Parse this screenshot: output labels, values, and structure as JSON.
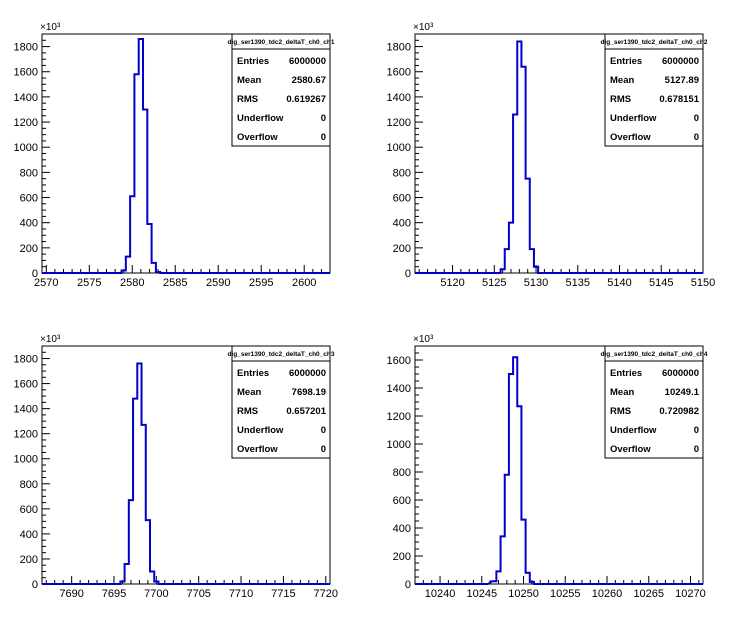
{
  "chart_data": [
    {
      "type": "bar",
      "style": "histogram",
      "title": "",
      "xlabel": "",
      "ylabel": "",
      "y_multiplier": "×10³",
      "xlim": [
        2569.5,
        2603.0
      ],
      "ylim": [
        0,
        1900
      ],
      "xticks": [
        2570,
        2575,
        2580,
        2585,
        2590,
        2595,
        2600
      ],
      "yticks": [
        0,
        200,
        400,
        600,
        800,
        1000,
        1200,
        1400,
        1600,
        1800
      ],
      "bins": [
        {
          "x": 2577.5,
          "y": 0
        },
        {
          "x": 2578.5,
          "y": 0
        },
        {
          "x": 2579.0,
          "y": 20
        },
        {
          "x": 2579.5,
          "y": 130
        },
        {
          "x": 2580.0,
          "y": 610
        },
        {
          "x": 2580.5,
          "y": 1580
        },
        {
          "x": 2581.0,
          "y": 1860
        },
        {
          "x": 2581.5,
          "y": 1300
        },
        {
          "x": 2582.0,
          "y": 390
        },
        {
          "x": 2582.5,
          "y": 80
        },
        {
          "x": 2583.0,
          "y": 8
        },
        {
          "x": 2583.5,
          "y": 0
        }
      ],
      "bin_width": 0.5,
      "stats": {
        "name": "dig_ser1390_tdc2_deltaT_ch0_ch1",
        "rows": [
          {
            "label": "Entries",
            "value": "6000000"
          },
          {
            "label": "Mean",
            "value": "2580.67"
          },
          {
            "label": "RMS",
            "value": "0.619267"
          },
          {
            "label": "Underflow",
            "value": "0"
          },
          {
            "label": "Overflow",
            "value": "0"
          }
        ]
      },
      "line_color": "#0000CC"
    },
    {
      "type": "bar",
      "style": "histogram",
      "title": "",
      "xlabel": "",
      "ylabel": "",
      "y_multiplier": "×10³",
      "xlim": [
        5115.5,
        5150.0
      ],
      "ylim": [
        0,
        1900
      ],
      "xticks": [
        5120,
        5125,
        5130,
        5135,
        5140,
        5145,
        5150
      ],
      "yticks": [
        0,
        200,
        400,
        600,
        800,
        1000,
        1200,
        1400,
        1600,
        1800
      ],
      "bins": [
        {
          "x": 5124.5,
          "y": 0
        },
        {
          "x": 5125.5,
          "y": 0
        },
        {
          "x": 5126.0,
          "y": 30
        },
        {
          "x": 5126.5,
          "y": 190
        },
        {
          "x": 5127.0,
          "y": 400
        },
        {
          "x": 5127.5,
          "y": 1260
        },
        {
          "x": 5128.0,
          "y": 1840
        },
        {
          "x": 5128.5,
          "y": 1640
        },
        {
          "x": 5129.0,
          "y": 750
        },
        {
          "x": 5129.5,
          "y": 190
        },
        {
          "x": 5130.0,
          "y": 50
        },
        {
          "x": 5130.5,
          "y": 0
        }
      ],
      "bin_width": 0.5,
      "stats": {
        "name": "dig_ser1390_tdc2_deltaT_ch0_ch2",
        "rows": [
          {
            "label": "Entries",
            "value": "6000000"
          },
          {
            "label": "Mean",
            "value": "5127.89"
          },
          {
            "label": "RMS",
            "value": "0.678151"
          },
          {
            "label": "Underflow",
            "value": "0"
          },
          {
            "label": "Overflow",
            "value": "0"
          }
        ]
      },
      "line_color": "#0000CC"
    },
    {
      "type": "bar",
      "style": "histogram",
      "title": "",
      "xlabel": "",
      "ylabel": "",
      "y_multiplier": "×10³",
      "xlim": [
        7686.5,
        7720.5
      ],
      "ylim": [
        0,
        1900
      ],
      "xticks": [
        7690,
        7695,
        7700,
        7705,
        7710,
        7715,
        7720
      ],
      "yticks": [
        0,
        200,
        400,
        600,
        800,
        1000,
        1200,
        1400,
        1600,
        1800
      ],
      "bins": [
        {
          "x": 7695.5,
          "y": 0
        },
        {
          "x": 7696.0,
          "y": 20
        },
        {
          "x": 7696.5,
          "y": 160
        },
        {
          "x": 7697.0,
          "y": 670
        },
        {
          "x": 7697.5,
          "y": 1480
        },
        {
          "x": 7698.0,
          "y": 1760
        },
        {
          "x": 7698.5,
          "y": 1270
        },
        {
          "x": 7699.0,
          "y": 510
        },
        {
          "x": 7699.5,
          "y": 100
        },
        {
          "x": 7700.0,
          "y": 20
        },
        {
          "x": 7700.5,
          "y": 0
        }
      ],
      "bin_width": 0.5,
      "stats": {
        "name": "dig_ser1390_tdc2_deltaT_ch0_ch3",
        "rows": [
          {
            "label": "Entries",
            "value": "6000000"
          },
          {
            "label": "Mean",
            "value": "7698.19"
          },
          {
            "label": "RMS",
            "value": "0.657201"
          },
          {
            "label": "Underflow",
            "value": "0"
          },
          {
            "label": "Overflow",
            "value": "0"
          }
        ]
      },
      "line_color": "#0000CC"
    },
    {
      "type": "bar",
      "style": "histogram",
      "title": "",
      "xlabel": "",
      "ylabel": "",
      "y_multiplier": "×10³",
      "xlim": [
        10237.0,
        10271.5
      ],
      "ylim": [
        0,
        1700
      ],
      "xticks": [
        10240,
        10245,
        10250,
        10255,
        10260,
        10265,
        10270
      ],
      "yticks": [
        0,
        200,
        400,
        600,
        800,
        1000,
        1200,
        1400,
        1600
      ],
      "bins": [
        {
          "x": 10245.5,
          "y": 0
        },
        {
          "x": 10246.5,
          "y": 20
        },
        {
          "x": 10247.0,
          "y": 90
        },
        {
          "x": 10247.5,
          "y": 340
        },
        {
          "x": 10248.0,
          "y": 780
        },
        {
          "x": 10248.5,
          "y": 1500
        },
        {
          "x": 10249.0,
          "y": 1620
        },
        {
          "x": 10249.5,
          "y": 1270
        },
        {
          "x": 10250.0,
          "y": 460
        },
        {
          "x": 10250.5,
          "y": 80
        },
        {
          "x": 10251.0,
          "y": 15
        },
        {
          "x": 10251.5,
          "y": 0
        }
      ],
      "bin_width": 0.5,
      "stats": {
        "name": "dig_ser1390_tdc2_deltaT_ch0_ch4",
        "rows": [
          {
            "label": "Entries",
            "value": "6000000"
          },
          {
            "label": "Mean",
            "value": "10249.1"
          },
          {
            "label": "RMS",
            "value": "0.720982"
          },
          {
            "label": "Underflow",
            "value": "0"
          },
          {
            "label": "Overflow",
            "value": "0"
          }
        ]
      },
      "line_color": "#0000CC"
    }
  ]
}
